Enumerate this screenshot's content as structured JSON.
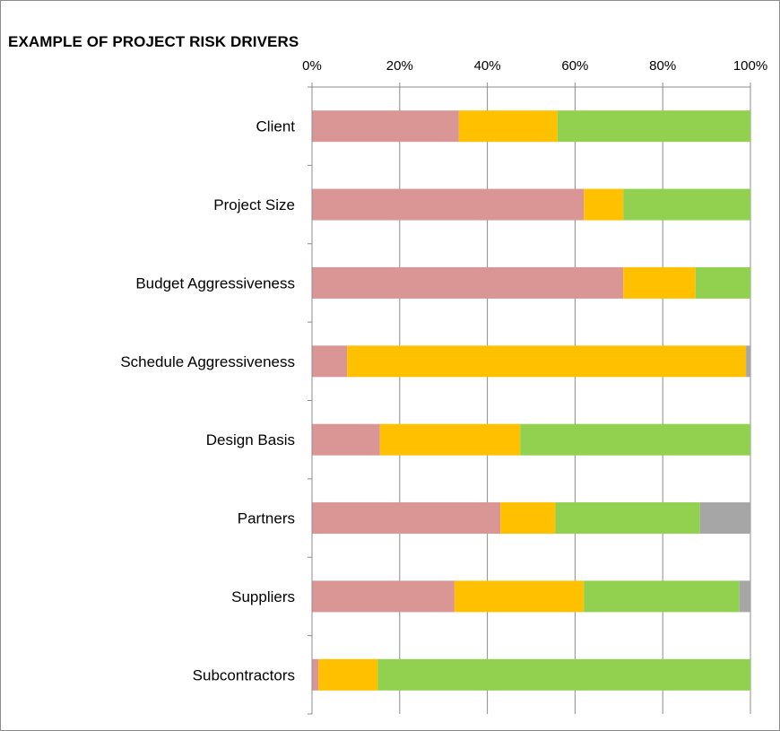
{
  "chart_data": {
    "type": "bar",
    "orientation": "horizontal",
    "stacked": true,
    "percent": true,
    "title": "EXAMPLE OF PROJECT RISK DRIVERS",
    "x_ticks": [
      "0%",
      "20%",
      "40%",
      "60%",
      "80%",
      "100%"
    ],
    "xlim": [
      0,
      100
    ],
    "grid": true,
    "legend": "none",
    "categories": [
      "Client",
      "Project Size",
      "Budget Aggressiveness",
      "Schedule Aggressiveness",
      "Design Basis",
      "Partners",
      "Suppliers",
      "Subcontractors"
    ],
    "series": [
      {
        "color": "#d99694",
        "values": [
          33.5,
          62,
          71,
          8,
          15.5,
          43,
          32.5,
          1.5
        ]
      },
      {
        "color": "#ffc000",
        "values": [
          22.5,
          9,
          16.5,
          91,
          32,
          12.5,
          29.5,
          13.5
        ]
      },
      {
        "color": "#92d050",
        "values": [
          44,
          29,
          12.5,
          0,
          52.5,
          33,
          35.5,
          85
        ]
      },
      {
        "color": "#a6a6a6",
        "values": [
          0,
          0,
          0,
          1,
          0,
          11.5,
          2.5,
          0
        ]
      }
    ]
  }
}
